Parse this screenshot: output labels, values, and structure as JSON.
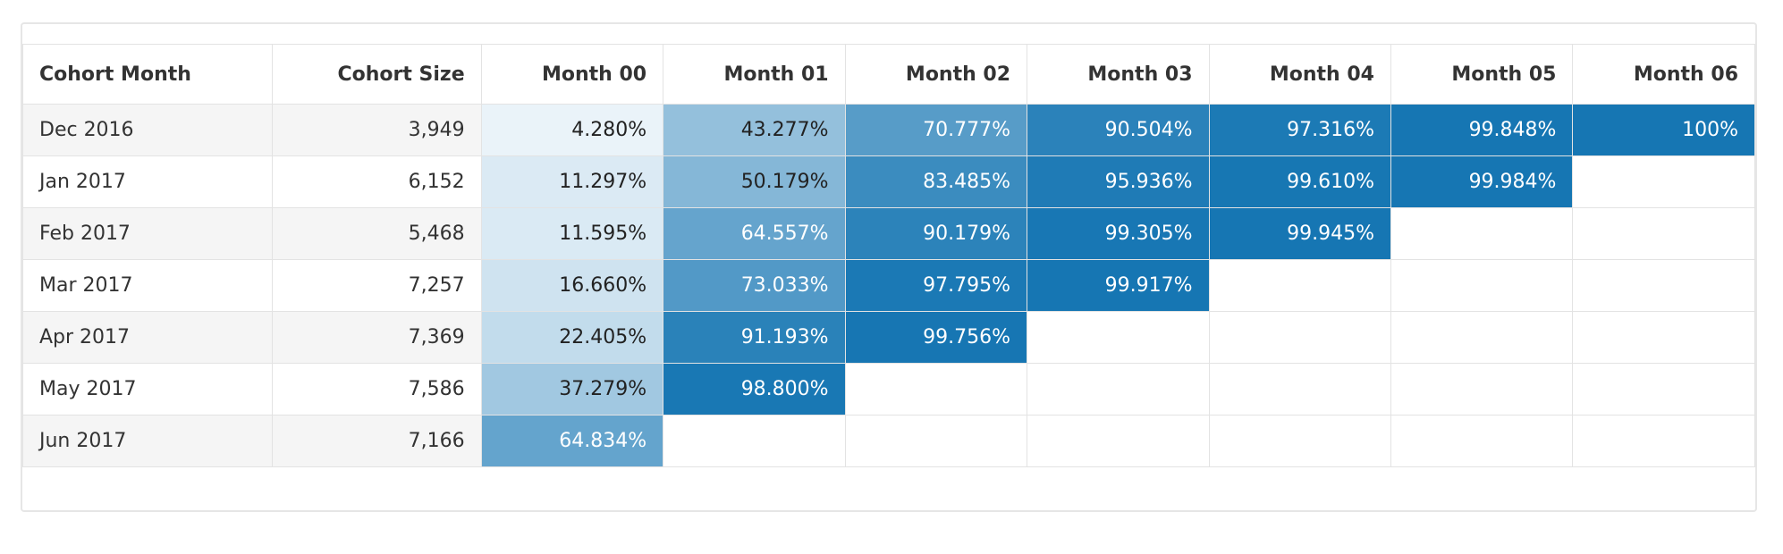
{
  "table": {
    "header": [
      "Cohort Month",
      "Cohort Size",
      "Month 00",
      "Month 01",
      "Month 02",
      "Month 03",
      "Month 04",
      "Month 05",
      "Month 06"
    ],
    "rows": [
      [
        "Dec 2016",
        "3,949",
        "4.280%",
        "43.277%",
        "70.777%",
        "90.504%",
        "97.316%",
        "99.848%",
        "100%"
      ],
      [
        "Jan 2017",
        "6,152",
        "11.297%",
        "50.179%",
        "83.485%",
        "95.936%",
        "99.610%",
        "99.984%"
      ],
      [
        "Feb 2017",
        "5,468",
        "11.595%",
        "64.557%",
        "90.179%",
        "99.305%",
        "99.945%"
      ],
      [
        "Mar 2017",
        "7,257",
        "16.660%",
        "73.033%",
        "97.795%",
        "99.917%"
      ],
      [
        "Apr 2017",
        "7,369",
        "22.405%",
        "91.193%",
        "99.756%"
      ],
      [
        "May 2017",
        "7,586",
        "37.279%",
        "98.800%"
      ],
      [
        "Jun 2017",
        "7,166",
        "64.834%"
      ]
    ]
  }
}
